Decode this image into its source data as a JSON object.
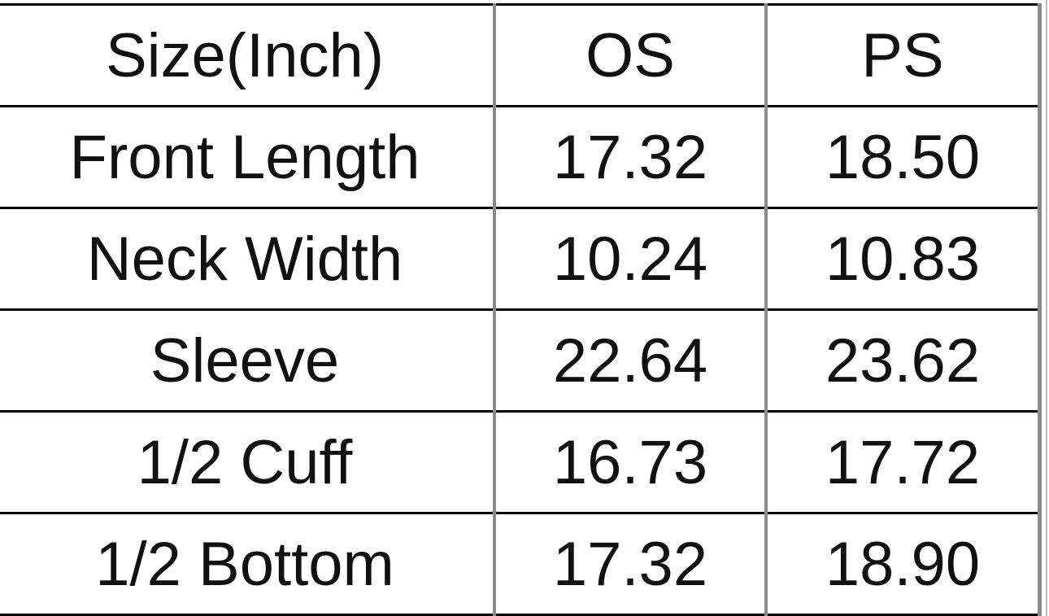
{
  "table": {
    "headers": [
      "Size(Inch)",
      "OS",
      "PS"
    ],
    "rows": [
      [
        "Front Length",
        "17.32",
        "18.50"
      ],
      [
        "Neck Width",
        "10.24",
        "10.83"
      ],
      [
        "Sleeve",
        "22.64",
        "23.62"
      ],
      [
        "1/2 Cuff",
        "16.73",
        "17.72"
      ],
      [
        "1/2 Bottom",
        "17.32",
        "18.90"
      ]
    ]
  }
}
